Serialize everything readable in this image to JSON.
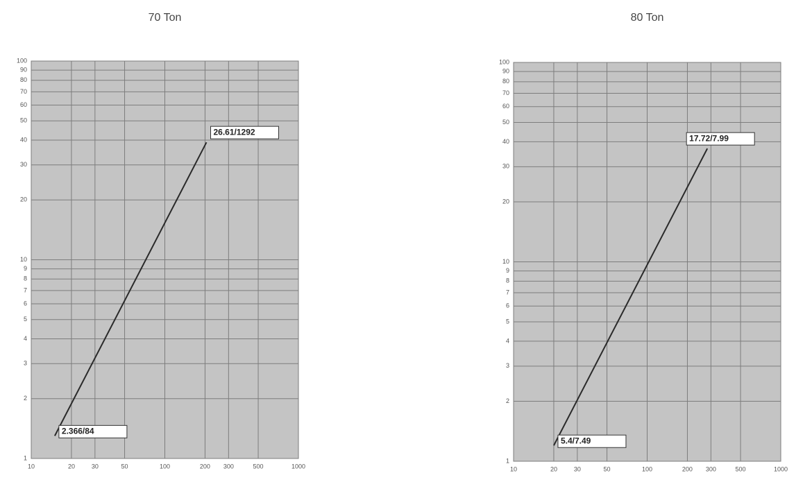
{
  "chart_data": [
    {
      "type": "line",
      "title": "70 Ton",
      "log_x": true,
      "log_y": true,
      "grid": true,
      "color": "#2a2a2a",
      "x": [
        15,
        205
      ],
      "values": [
        1.3,
        39
      ],
      "annotations": [
        "2.366/84",
        "26.61/1292"
      ],
      "xlim": [
        10,
        1000
      ],
      "xticks": [
        10,
        20,
        30,
        50,
        100,
        200,
        300,
        500,
        1000
      ],
      "ylim": [
        1,
        100
      ],
      "yticks": [
        1,
        2,
        3,
        4,
        5,
        6,
        7,
        8,
        9,
        10,
        20,
        30,
        40,
        50,
        60,
        70,
        80,
        90,
        100
      ]
    },
    {
      "type": "line",
      "title": "80 Ton",
      "log_x": true,
      "log_y": true,
      "grid": true,
      "color": "#2a2a2a",
      "x": [
        20,
        282
      ],
      "values": [
        1.2,
        37
      ],
      "annotations": [
        "5.4/7.49",
        "17.72/7.99"
      ],
      "xlim": [
        10,
        1000
      ],
      "xticks": [
        10,
        20,
        30,
        50,
        100,
        200,
        300,
        500,
        1000
      ],
      "ylim": [
        1,
        100
      ],
      "yticks": [
        1,
        2,
        3,
        4,
        5,
        6,
        7,
        8,
        9,
        10,
        20,
        30,
        40,
        50,
        60,
        70,
        80,
        90,
        100
      ]
    }
  ]
}
